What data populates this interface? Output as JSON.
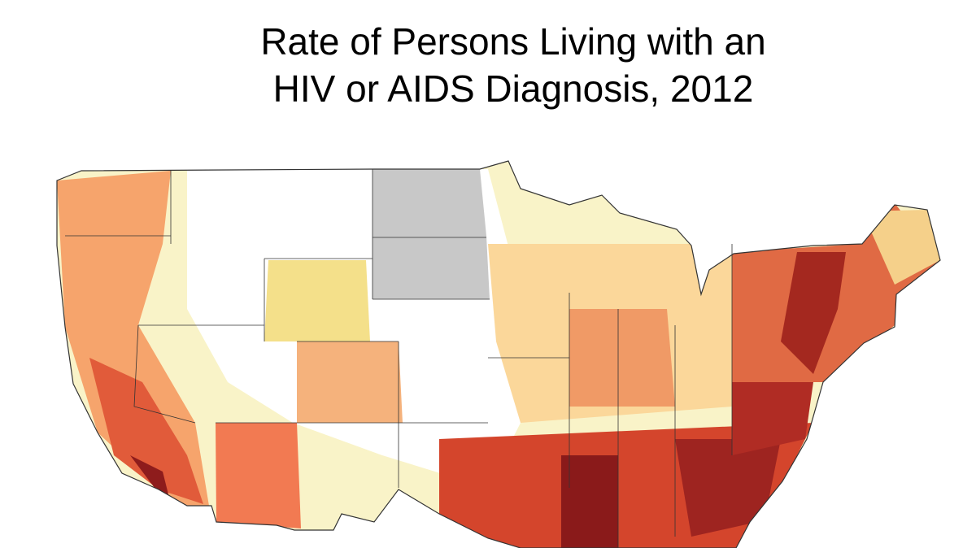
{
  "title": [
    "Rate of Persons Living with an",
    "HIV or AIDS Diagnosis, 2012"
  ]
}
